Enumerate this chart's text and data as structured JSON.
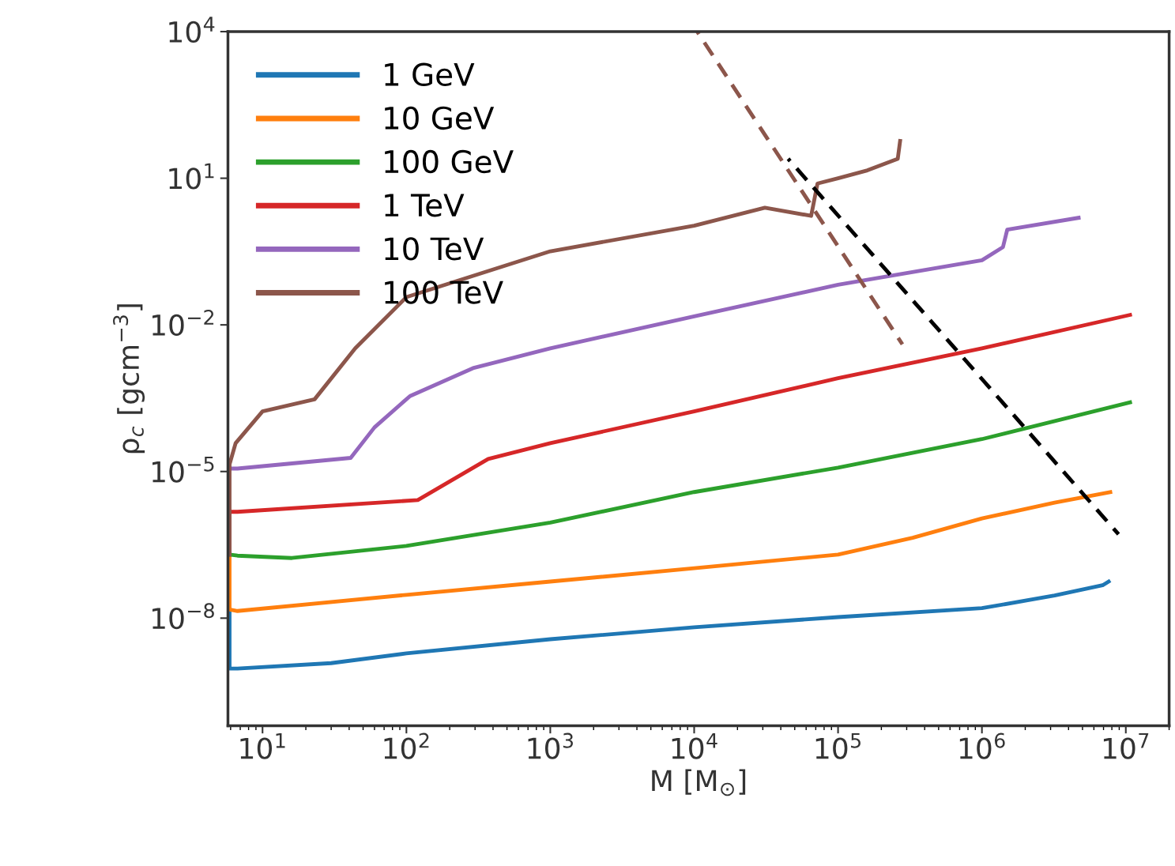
{
  "chart_data": {
    "type": "line",
    "xlabel": "M [M$_{⊙}$]",
    "ylabel": "ρ$_{c}$ [gcm$^{−3}$]",
    "log": "xy",
    "legend": "top left",
    "grid": false,
    "line_style": "solid",
    "xlim": [
      5.75,
      20000000.0
    ],
    "ylim": [
      6.3e-11,
      10000.0
    ],
    "xticks": [
      {
        "value": 10,
        "label": "10$^{1}$"
      },
      {
        "value": 100,
        "label": "10$^{2}$"
      },
      {
        "value": 1000,
        "label": "10$^{3}$"
      },
      {
        "value": 10000,
        "label": "10$^{4}$"
      },
      {
        "value": 100000,
        "label": "10$^{5}$"
      },
      {
        "value": 1000000,
        "label": "10$^{6}$"
      },
      {
        "value": 10000000,
        "label": "10$^{7}$"
      }
    ],
    "yticks": [
      {
        "value": 1e-08,
        "label": "10$^{−8}$"
      },
      {
        "value": 1e-05,
        "label": "10$^{−5}$"
      },
      {
        "value": 0.01,
        "label": "10$^{−2}$"
      },
      {
        "value": 10,
        "label": "10$^{1}$"
      },
      {
        "value": 10000,
        "label": "10$^{4}$"
      }
    ],
    "series": [
      {
        "name": "1 GeV",
        "color": "#1f77b4",
        "x": [
          5.9,
          5.9,
          6.7,
          30,
          100,
          1000,
          10000,
          100000,
          1000000,
          3200000,
          6900000,
          7600000
        ],
        "values": [
          1.5e-08,
          9.3e-10,
          9.3e-10,
          1.2e-09,
          1.9e-09,
          3.7e-09,
          6.5e-09,
          1.05e-08,
          1.6e-08,
          2.9e-08,
          4.7e-08,
          5.6e-08
        ]
      },
      {
        "name": "10 GeV",
        "color": "#ff7f0e",
        "x": [
          5.9,
          5.9,
          6.7,
          100,
          1000,
          10000,
          100000,
          330000,
          1000000,
          3200000,
          7800000
        ],
        "values": [
          2e-07,
          1.5e-08,
          1.4e-08,
          3e-08,
          5.6e-08,
          1.05e-07,
          2e-07,
          4.4e-07,
          1.1e-06,
          2.3e-06,
          3.8e-06
        ]
      },
      {
        "name": "100 GeV",
        "color": "#2ca02c",
        "x": [
          5.9,
          6.7,
          16,
          100,
          1000,
          10000,
          100000,
          1000000,
          10700000
        ],
        "values": [
          2e-07,
          1.9e-07,
          1.7e-07,
          3e-07,
          9e-07,
          3.8e-06,
          1.2e-05,
          4.6e-05,
          0.00026
        ]
      },
      {
        "name": "1 TeV",
        "color": "#d62728",
        "x": [
          5.9,
          5.9,
          6.7,
          120,
          370,
          1000,
          10000,
          100000,
          1000000,
          10700000
        ],
        "values": [
          2e-07,
          1.5e-06,
          1.5e-06,
          2.6e-06,
          1.8e-05,
          3.8e-05,
          0.00017,
          0.00081,
          0.0033,
          0.016
        ]
      },
      {
        "name": "10 TeV",
        "color": "#9467bd",
        "x": [
          5.9,
          6.7,
          41,
          60,
          106,
          290,
          1000,
          10000,
          100000,
          1000000,
          1400000,
          1500000,
          4700000
        ],
        "values": [
          1.15e-05,
          1.15e-05,
          1.9e-05,
          8e-05,
          0.00035,
          0.0013,
          0.0033,
          0.015,
          0.066,
          0.21,
          0.39,
          0.89,
          1.55
        ]
      },
      {
        "name": "100 TeV",
        "color": "#8c564b",
        "x": [
          5.9,
          5.9,
          6.5,
          10,
          23,
          44,
          100,
          1000,
          10000,
          31000,
          65000,
          72000,
          100000,
          160000,
          260000,
          270000
        ],
        "values": [
          2e-07,
          1.4e-05,
          3.8e-05,
          0.00017,
          0.0003,
          0.0033,
          0.037,
          0.32,
          1.07,
          2.5,
          1.7,
          7.8,
          10,
          14.5,
          25,
          58
        ]
      },
      {
        "color": "#8c564b",
        "line_style": "dashed",
        "x": [
          10500,
          280000
        ],
        "values": [
          10000,
          0.004
        ]
      },
      {
        "color": "#000000",
        "line_style": "dashed",
        "x": [
          45000,
          8900000
        ],
        "values": [
          25,
          5.2e-07
        ]
      }
    ]
  }
}
